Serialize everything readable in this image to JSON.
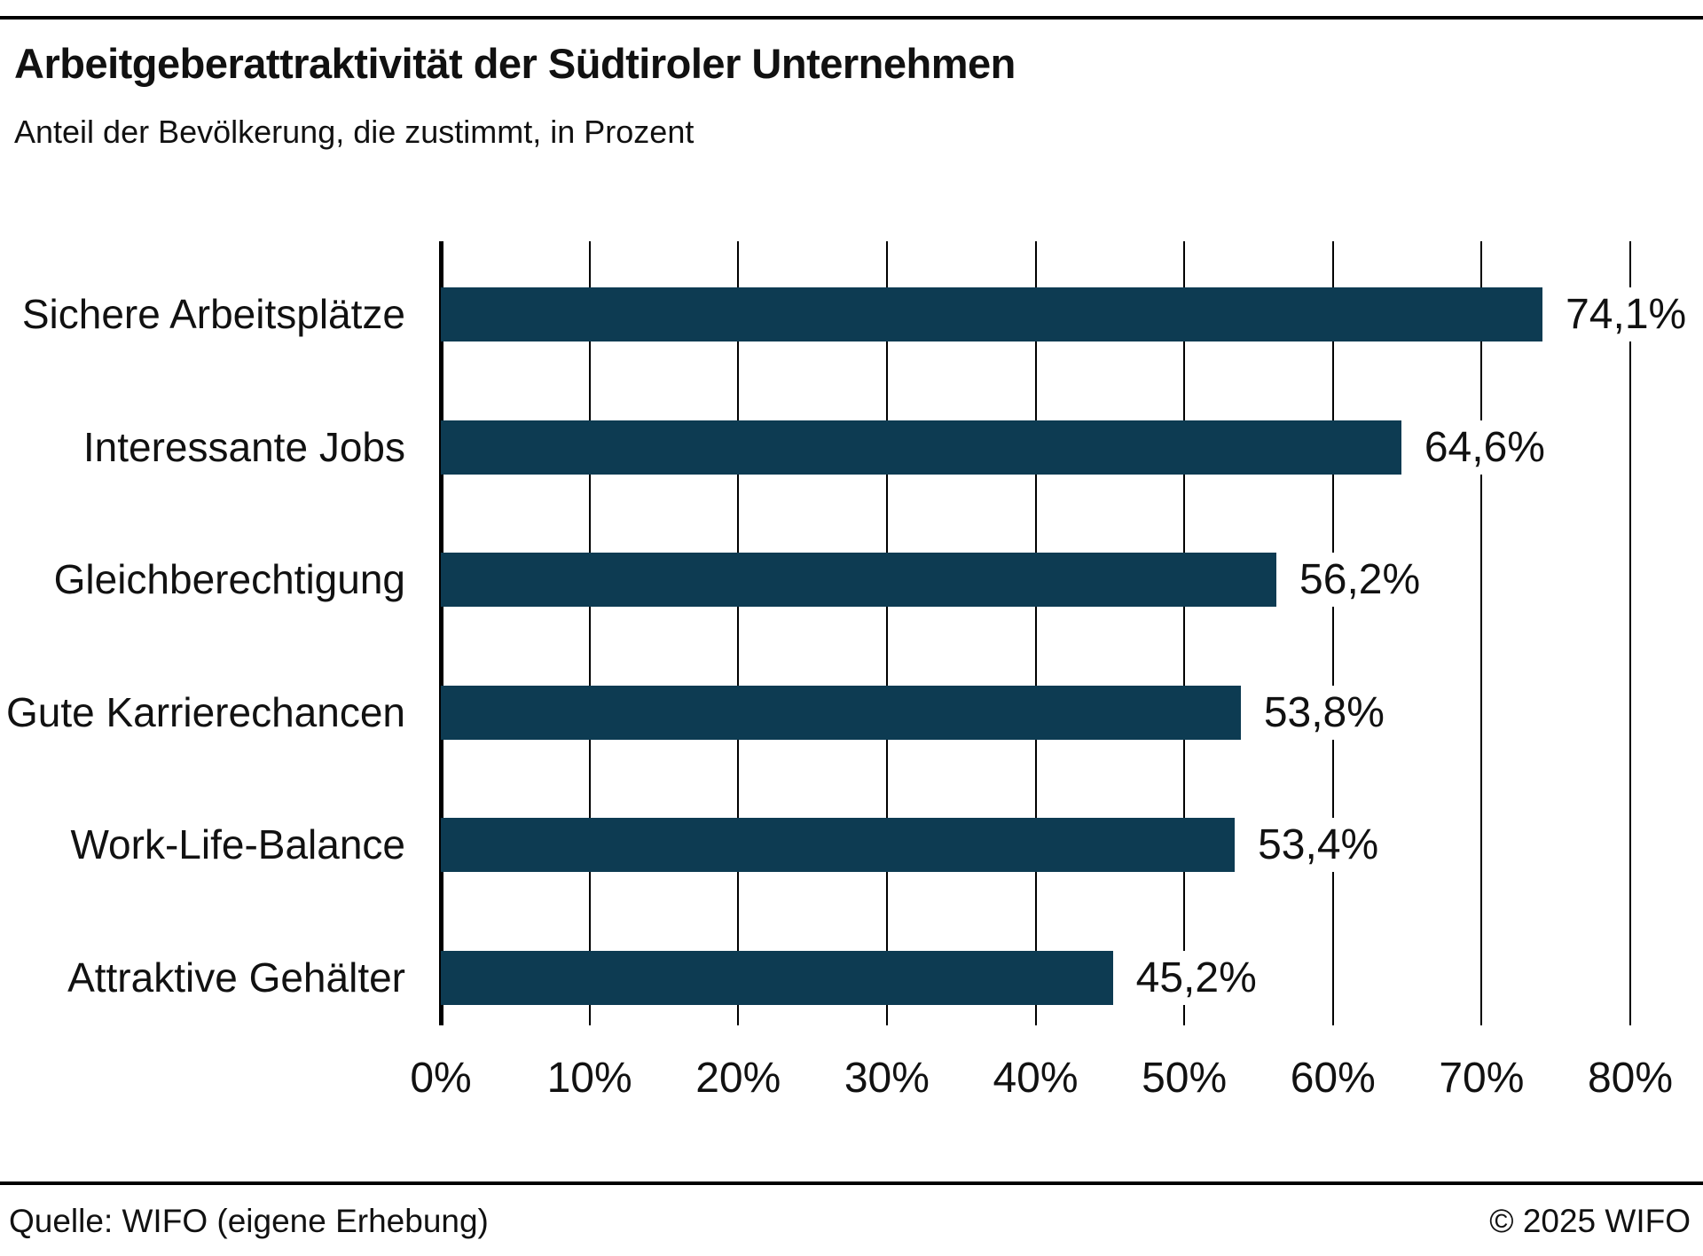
{
  "chart_data": {
    "type": "bar",
    "orientation": "horizontal",
    "title": "Arbeitgeberattraktivität der Südtiroler Unternehmen",
    "subtitle": "Anteil der Bevölkerung, die zustimmt, in Prozent",
    "categories": [
      "Sichere Arbeitsplätze",
      "Interessante Jobs",
      "Gleichberechtigung",
      "Gute Karrierechancen",
      "Work-Life-Balance",
      "Attraktive Gehälter"
    ],
    "values": [
      74.1,
      64.6,
      56.2,
      53.8,
      53.4,
      45.2
    ],
    "value_labels": [
      "74,1%",
      "64,6%",
      "56,2%",
      "53,8%",
      "53,4%",
      "45,2%"
    ],
    "x_ticks": [
      "0%",
      "10%",
      "20%",
      "30%",
      "40%",
      "50%",
      "60%",
      "70%",
      "80%"
    ],
    "x_tick_values": [
      0,
      10,
      20,
      30,
      40,
      50,
      60,
      70,
      80
    ],
    "xlim": [
      0,
      80
    ],
    "grid": "vertical",
    "legend": "none",
    "bar_color": "#0d3b52",
    "axis_color": "#000000",
    "text_color": "#111111"
  },
  "footer": {
    "source": "Quelle: WIFO (eigene Erhebung)",
    "copyright": "© 2025 WIFO"
  }
}
